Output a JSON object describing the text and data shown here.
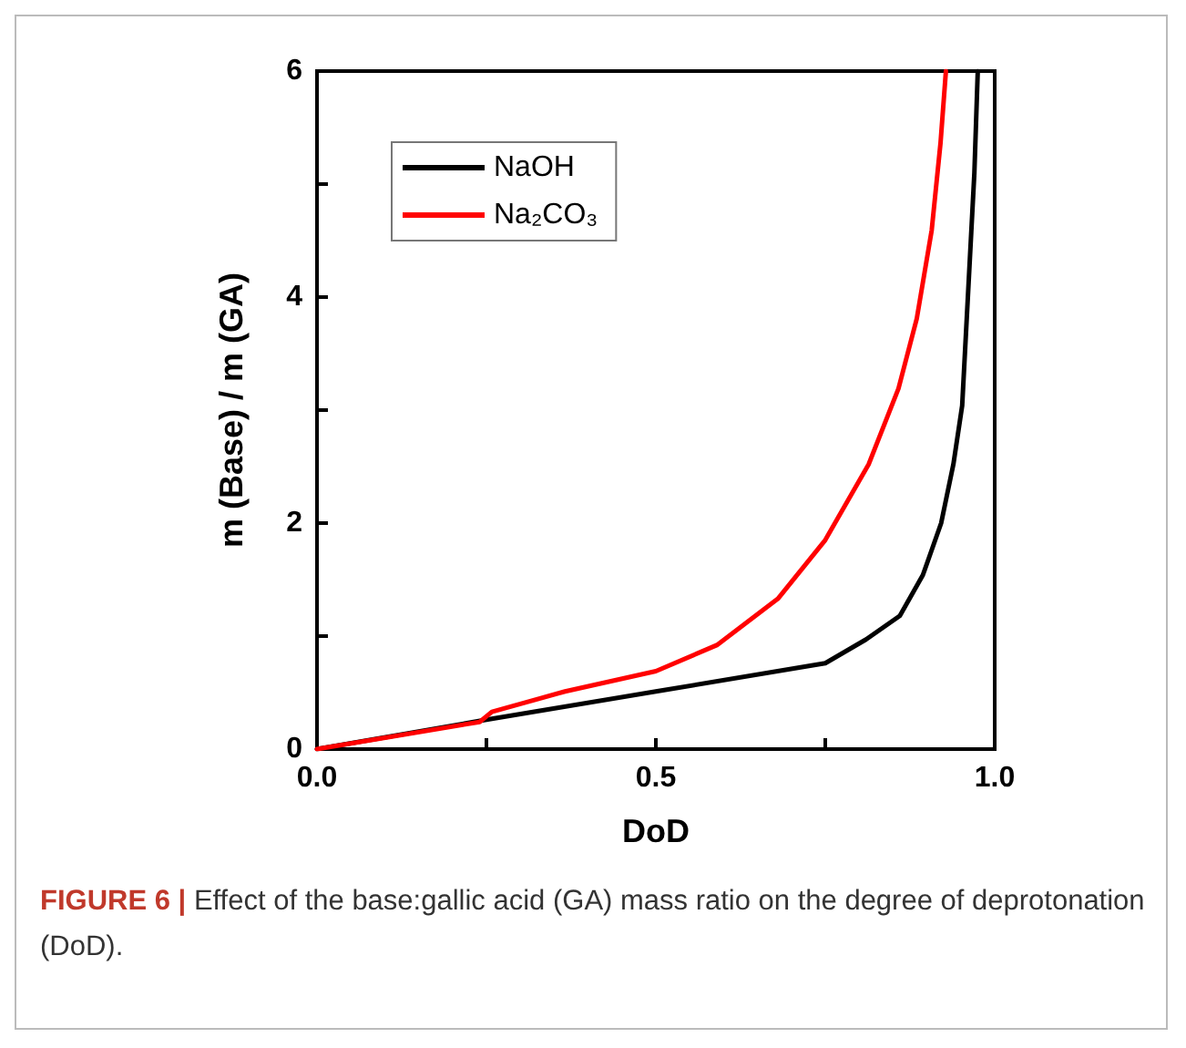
{
  "chart_data": {
    "type": "line",
    "xlabel": "DoD",
    "ylabel": "m (Base) / m (GA)",
    "xlim": [
      0,
      1.0
    ],
    "ylim": [
      0,
      6
    ],
    "xticks": [
      {
        "value": 0,
        "label": "0.0"
      },
      {
        "value": 0.25,
        "label": null
      },
      {
        "value": 0.5,
        "label": "0.5"
      },
      {
        "value": 0.75,
        "label": null
      },
      {
        "value": 1.0,
        "label": "1.0"
      }
    ],
    "yticks": [
      0,
      {
        "value": 1,
        "label": null
      },
      2,
      {
        "value": 3,
        "label": null
      },
      4,
      {
        "value": 5,
        "label": null
      },
      6
    ],
    "grid": false,
    "legend": "top left",
    "marker": "none",
    "line_style": "solid",
    "series": [
      {
        "name": "NaOH",
        "color": "#000000",
        "x": [
          0,
          0.25,
          0.5,
          0.75,
          0.81,
          0.86,
          0.894,
          0.921,
          0.939,
          0.952,
          0.961,
          0.97,
          0.975
        ],
        "values": [
          0,
          0.26,
          0.51,
          0.76,
          0.97,
          1.18,
          1.54,
          2.0,
          2.52,
          3.04,
          4.07,
          5.1,
          6.0
        ]
      },
      {
        "name": "Na₂CO₃",
        "color": "#ff0000",
        "x": [
          0,
          0.24,
          0.258,
          0.366,
          0.5,
          0.59,
          0.68,
          0.75,
          0.814,
          0.858,
          0.885,
          0.907,
          0.92,
          0.928
        ],
        "values": [
          0,
          0.24,
          0.33,
          0.51,
          0.69,
          0.92,
          1.33,
          1.85,
          2.52,
          3.19,
          3.81,
          4.59,
          5.36,
          6.0
        ]
      }
    ],
    "annotations": [
      "FIGURE 6 | Effect of the base:gallic acid (GA) mass ratio on the degree of deprotonation (DoD)."
    ]
  }
}
